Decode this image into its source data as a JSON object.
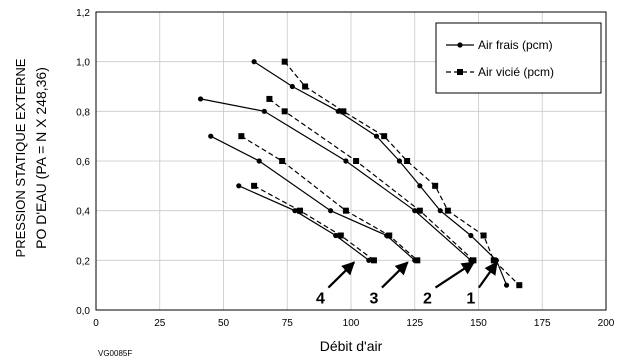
{
  "chart_data": {
    "type": "line",
    "xlabel": "Débit d'air",
    "ylabel_line1": "PRESSION STATIQUE EXTERNE",
    "ylabel_line2": "PO D'EAU (PA = N X 248,36)",
    "xlim": [
      0,
      200
    ],
    "ylim": [
      0,
      1.2
    ],
    "x_ticks": [
      0,
      25,
      50,
      75,
      100,
      125,
      150,
      175,
      200
    ],
    "y_ticks": [
      0.0,
      0.2,
      0.4,
      0.6,
      0.8,
      1.0,
      1.2
    ],
    "y_tick_labels": [
      "0,0",
      "0,2",
      "0,4",
      "0,6",
      "0,8",
      "1,0",
      "1,2"
    ],
    "grid": true,
    "legend_position": "top-right",
    "figure_id": "VG0085F",
    "series": [
      {
        "name": "Air frais (pcm)",
        "curve": "1",
        "style": "solid",
        "marker": "circle",
        "x": [
          62,
          77,
          95,
          110,
          119,
          127,
          135,
          147,
          157,
          161
        ],
        "y": [
          1.0,
          0.9,
          0.8,
          0.7,
          0.6,
          0.5,
          0.4,
          0.3,
          0.2,
          0.1
        ]
      },
      {
        "name": "Air vicié (pcm)",
        "curve": "1",
        "style": "dashed",
        "marker": "square",
        "x": [
          74,
          82,
          97,
          113,
          122,
          133,
          138,
          152,
          156,
          166
        ],
        "y": [
          1.0,
          0.9,
          0.8,
          0.7,
          0.6,
          0.5,
          0.4,
          0.3,
          0.2,
          0.1
        ]
      },
      {
        "name": "Air frais (pcm)",
        "curve": "2",
        "style": "solid",
        "marker": "circle",
        "x": [
          41,
          66,
          98,
          125,
          147
        ],
        "y": [
          0.85,
          0.8,
          0.6,
          0.4,
          0.2
        ]
      },
      {
        "name": "Air vicié (pcm)",
        "curve": "2",
        "style": "dashed",
        "marker": "square",
        "x": [
          68,
          74,
          102,
          127,
          148
        ],
        "y": [
          0.85,
          0.8,
          0.6,
          0.4,
          0.2
        ]
      },
      {
        "name": "Air frais (pcm)",
        "curve": "3",
        "style": "solid",
        "marker": "circle",
        "x": [
          45,
          64,
          92,
          114,
          125
        ],
        "y": [
          0.7,
          0.6,
          0.4,
          0.3,
          0.2
        ]
      },
      {
        "name": "Air vicié (pcm)",
        "curve": "3",
        "style": "dashed",
        "marker": "square",
        "x": [
          57,
          73,
          98,
          115,
          126
        ],
        "y": [
          0.7,
          0.6,
          0.4,
          0.3,
          0.2
        ]
      },
      {
        "name": "Air frais (pcm)",
        "curve": "4",
        "style": "solid",
        "marker": "circle",
        "x": [
          56,
          78,
          94,
          107
        ],
        "y": [
          0.5,
          0.4,
          0.3,
          0.2
        ]
      },
      {
        "name": "Air vicié (pcm)",
        "curve": "4",
        "style": "dashed",
        "marker": "square",
        "x": [
          62,
          80,
          96,
          109
        ],
        "y": [
          0.5,
          0.4,
          0.3,
          0.2
        ]
      }
    ],
    "legend": [
      {
        "label": "Air frais (pcm)",
        "style": "solid",
        "marker": "circle"
      },
      {
        "label": "Air vicié (pcm)",
        "style": "dashed",
        "marker": "square"
      }
    ],
    "annotations": [
      {
        "label": "1",
        "arrow_to": [
          158,
          0.2
        ],
        "text_at": [
          147,
          0.05
        ]
      },
      {
        "label": "2",
        "arrow_to": [
          149,
          0.2
        ],
        "text_at": [
          130,
          0.05
        ]
      },
      {
        "label": "3",
        "arrow_to": [
          123,
          0.2
        ],
        "text_at": [
          109,
          0.05
        ]
      },
      {
        "label": "4",
        "arrow_to": [
          102,
          0.2
        ],
        "text_at": [
          88,
          0.05
        ]
      }
    ]
  }
}
